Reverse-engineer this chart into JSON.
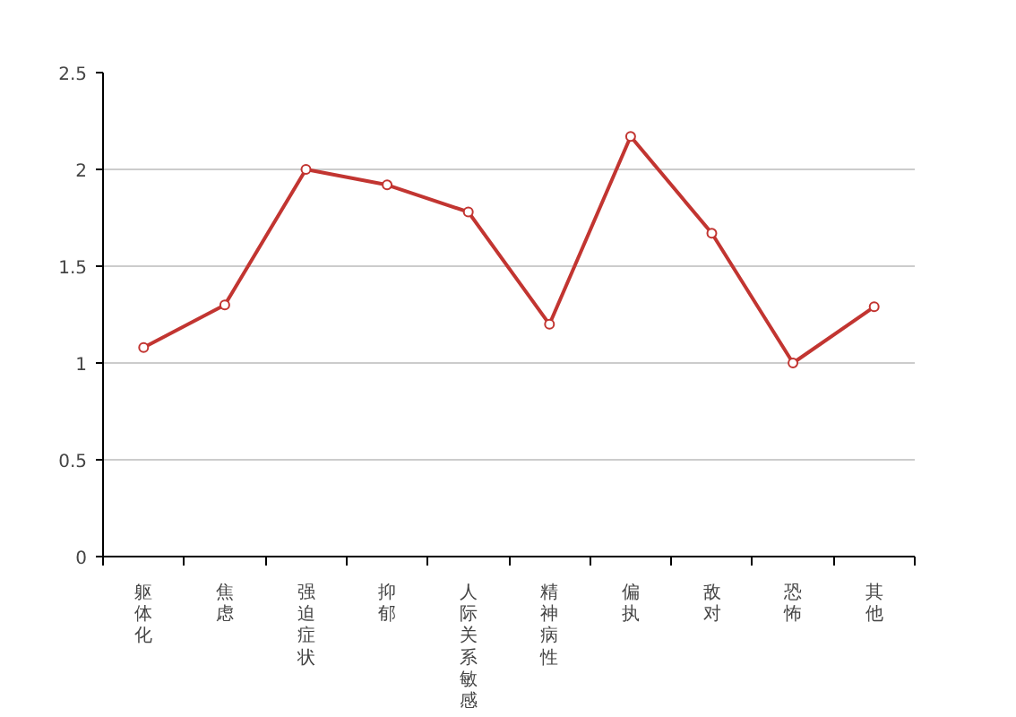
{
  "chart_data": {
    "type": "line",
    "categories": [
      "躯体化",
      "焦虑",
      "强迫症状",
      "抑郁",
      "人际关系敏感",
      "精神病性",
      "偏执",
      "敌对",
      "恐怖",
      "其他"
    ],
    "series": [
      {
        "color": "#c23531",
        "values": [
          1.08,
          1.3,
          2.0,
          1.92,
          1.78,
          1.2,
          2.17,
          1.67,
          1.0,
          1.29
        ]
      }
    ],
    "ylim": [
      0,
      2.5
    ],
    "yticks": [
      0,
      0.5,
      1,
      1.5,
      2,
      2.5
    ],
    "grid": "y",
    "marker": "circle",
    "line_style": "solid"
  }
}
